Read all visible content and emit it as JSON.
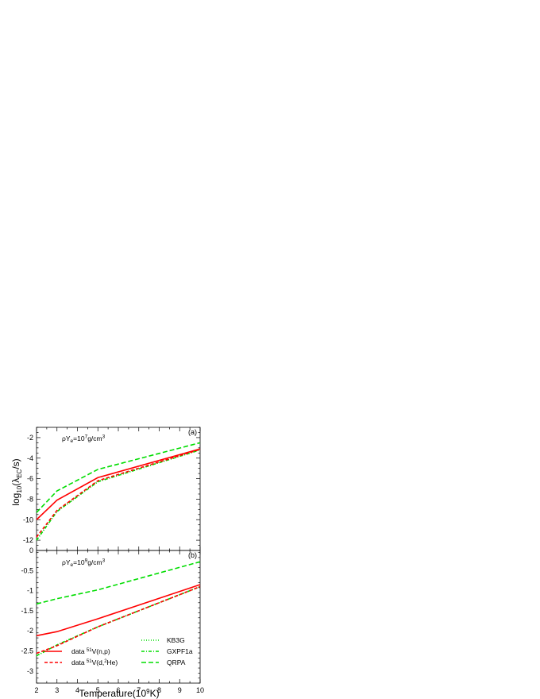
{
  "chart_data": [
    {
      "type": "line",
      "panel_label": "(a)",
      "annotation": {
        "text": "ρY",
        "sub": "e",
        "mid": "=10",
        "sup": "7",
        "tail": "g/cm",
        "sup2": "3"
      },
      "ylabel": "log10(λEC/s)",
      "xlabel": "Temperature(10^9K)",
      "xlim": [
        2,
        10
      ],
      "ylim": [
        -13,
        -1
      ],
      "x_ticks": [
        2,
        3,
        4,
        5,
        6,
        7,
        8,
        9,
        10
      ],
      "y_ticks": [
        -12,
        -10,
        -8,
        -6,
        -4,
        -2
      ],
      "series": [
        {
          "key": "np",
          "x": [
            2,
            3,
            5,
            10
          ],
          "y": [
            -10.0,
            -8.1,
            -5.9,
            -3.1
          ]
        },
        {
          "key": "dhe",
          "x": [
            2,
            3,
            5,
            10
          ],
          "y": [
            -11.7,
            -9.1,
            -6.2,
            -3.15
          ]
        },
        {
          "key": "kb3g",
          "x": [
            2,
            3,
            5,
            10
          ],
          "y": [
            -12.0,
            -9.2,
            -6.3,
            -3.2
          ]
        },
        {
          "key": "gxpf1a",
          "x": [
            2,
            3,
            5,
            10
          ],
          "y": [
            -12.0,
            -9.2,
            -6.3,
            -3.2
          ]
        },
        {
          "key": "qrpa",
          "x": [
            2,
            3,
            5,
            10
          ],
          "y": [
            -9.3,
            -7.2,
            -5.1,
            -2.5
          ]
        }
      ]
    },
    {
      "type": "line",
      "panel_label": "(b)",
      "annotation": {
        "text": "ρY",
        "sub": "e",
        "mid": "=10",
        "sup": "9",
        "tail": "g/cm",
        "sup2": "3"
      },
      "xlim": [
        2,
        10
      ],
      "ylim": [
        -3.3,
        0
      ],
      "x_ticks": [
        2,
        3,
        4,
        5,
        6,
        7,
        8,
        9,
        10
      ],
      "y_ticks": [
        -3,
        -2.5,
        -2,
        -1.5,
        -1,
        -0.5
      ],
      "series": [
        {
          "key": "np",
          "x": [
            2,
            3,
            5,
            10
          ],
          "y": [
            -2.12,
            -2.02,
            -1.7,
            -0.85
          ]
        },
        {
          "key": "dhe",
          "x": [
            2,
            3,
            5,
            10
          ],
          "y": [
            -2.56,
            -2.37,
            -1.9,
            -0.9
          ]
        },
        {
          "key": "kb3g",
          "x": [
            2,
            3,
            5,
            10
          ],
          "y": [
            -2.62,
            -2.35,
            -1.9,
            -0.9
          ]
        },
        {
          "key": "gxpf1a",
          "x": [
            2,
            3,
            5,
            10
          ],
          "y": [
            -2.62,
            -2.35,
            -1.9,
            -0.9
          ]
        },
        {
          "key": "qrpa",
          "x": [
            2,
            3,
            5,
            10
          ],
          "y": [
            -1.33,
            -1.2,
            -0.98,
            -0.28
          ]
        }
      ]
    }
  ],
  "axes": {
    "ylabel_parts": {
      "a": "log",
      "b": "10",
      "c": "(λ",
      "d": "EC",
      "e": "/s)"
    },
    "xlabel_parts": {
      "a": "Temperature(10",
      "b": "9",
      "c": "K)"
    },
    "y_bottom_zero": "0"
  },
  "legend": {
    "np": {
      "pre": "data ",
      "sup": "51",
      "post": "V(n,p)",
      "color": "#ff0000",
      "dash": "solid"
    },
    "dhe": {
      "pre": "data ",
      "sup": "51",
      "post": "V(d,",
      "sup2": "2",
      "post2": "He)",
      "color": "#ff0000",
      "dash": "dashed"
    },
    "kb3g": {
      "label": "KB3G",
      "color": "#00dd00",
      "dash": "dotted"
    },
    "gxpf1a": {
      "label": "GXPF1a",
      "color": "#00dd00",
      "dash": "dashdot"
    },
    "qrpa": {
      "label": "QRPA",
      "color": "#00dd00",
      "dash": "longdash"
    }
  }
}
